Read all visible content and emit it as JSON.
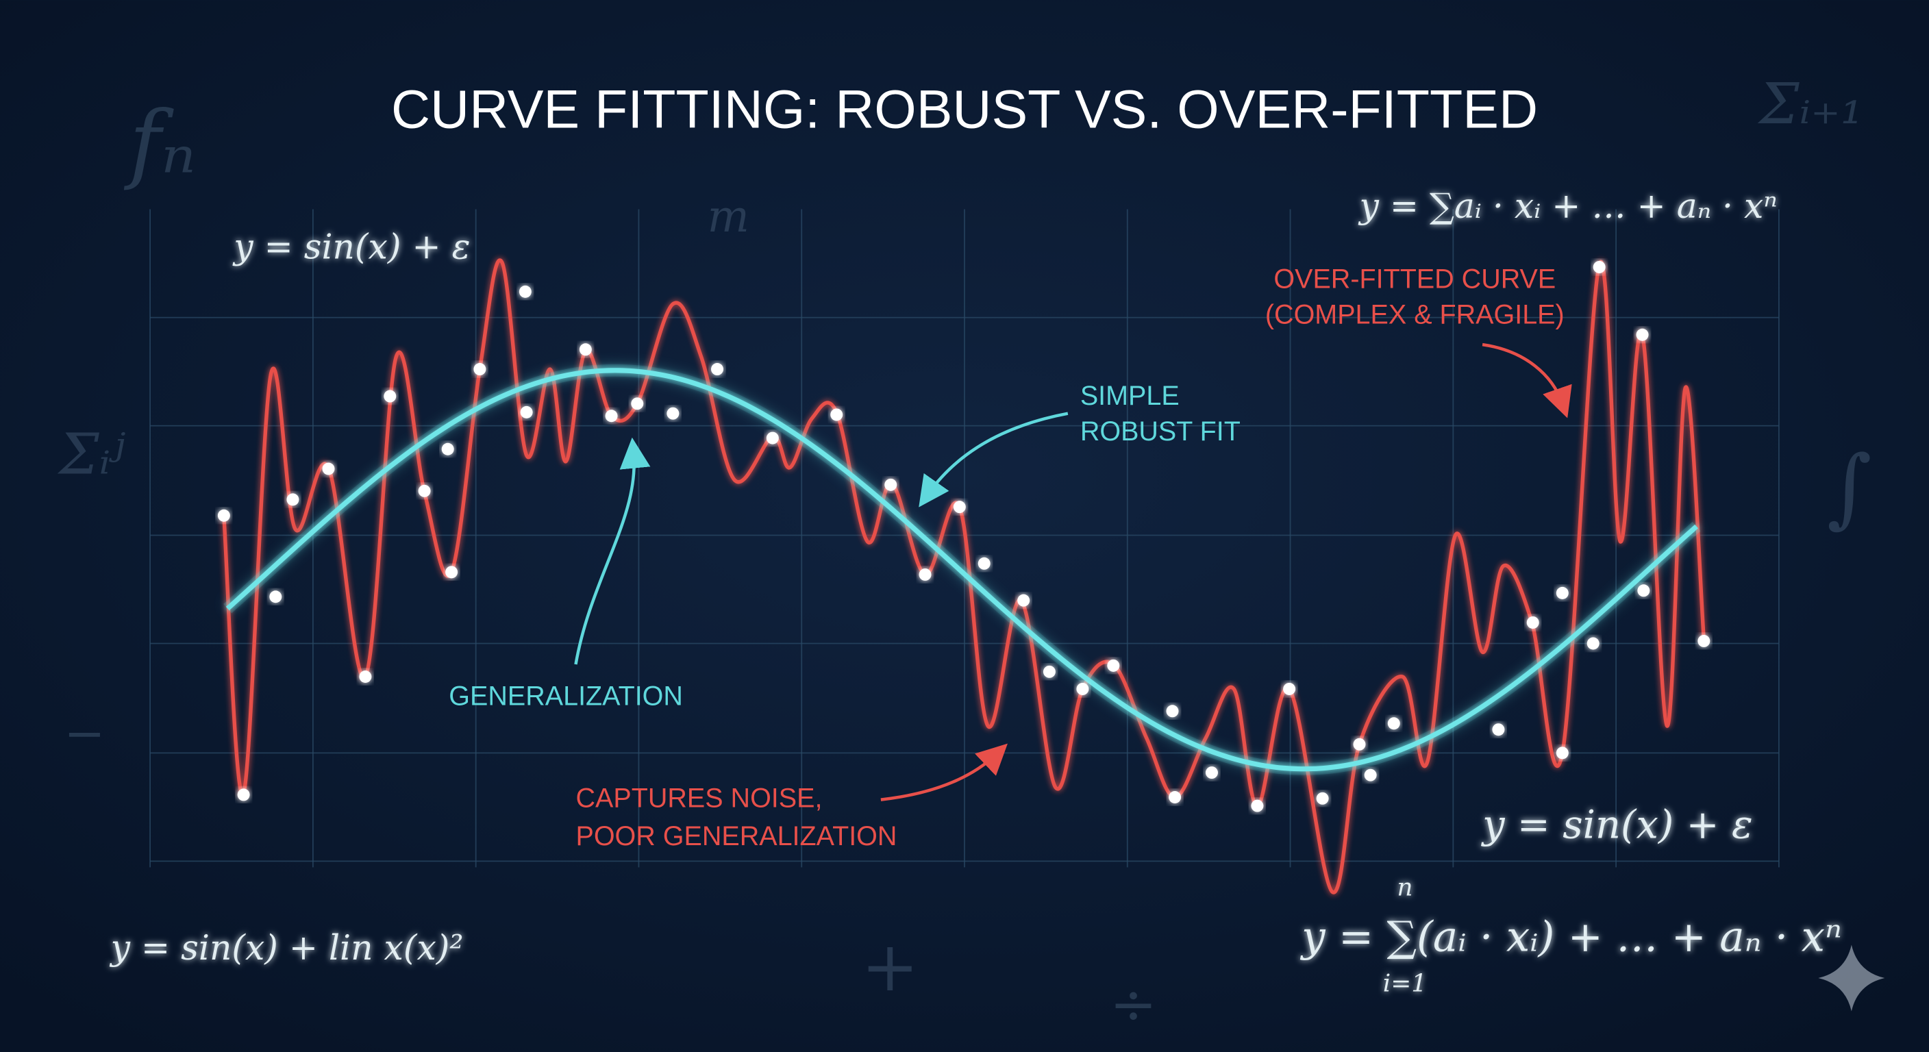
{
  "header": {
    "title": "CURVE FITTING: ROBUST VS. OVER-FITTED"
  },
  "labels": {
    "overfitted": [
      "OVER-FITTED CURVE",
      "(COMPLEX & FRAGILE)"
    ],
    "robust": [
      "SIMPLE",
      "ROBUST FIT"
    ],
    "generalization": "GENERALIZATION",
    "noise": [
      "CAPTURES NOISE,",
      "POOR GENERALIZATION"
    ]
  },
  "equations": {
    "top_left": "y = sin(x) + ε",
    "top_right": "y = ∑aᵢ · xᵢ + … + aₙ · xⁿ",
    "bottom_right": "y = sin(x) + ε",
    "bottom_left": "y = sin(x) + lin x(x)²",
    "bottom_sum": {
      "text": "y = ∑(aᵢ · xᵢ) + … + aₙ · xⁿ",
      "upper": "n",
      "lower": "i=1"
    }
  },
  "decorations": [
    "fₙ",
    "Σᵢ₊₁",
    "m",
    "Σᵢʲ",
    "∫",
    "−",
    "+",
    "÷"
  ]
}
